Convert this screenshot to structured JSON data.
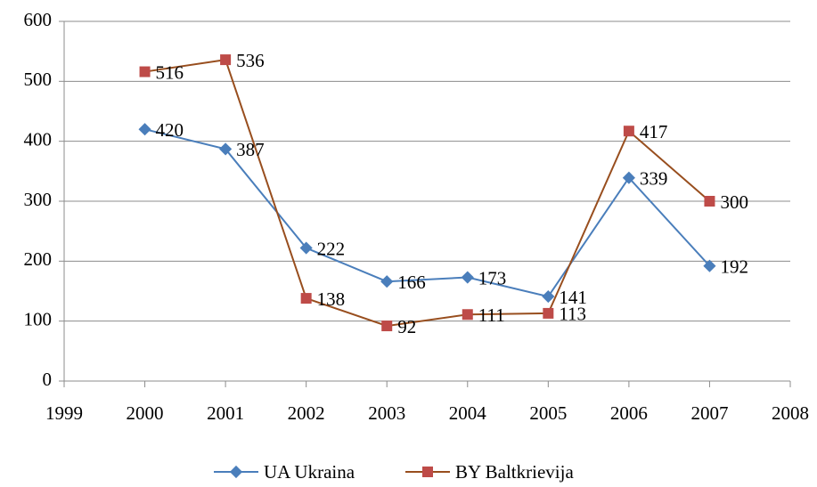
{
  "chart_data": {
    "type": "line",
    "x": [
      2000,
      2001,
      2002,
      2003,
      2004,
      2005,
      2006,
      2007
    ],
    "series": [
      {
        "name": "UA Ukraina",
        "color": "#4a7ebb",
        "marker_color": "#4a7ebb",
        "values": [
          420,
          387,
          222,
          166,
          173,
          141,
          339,
          192
        ]
      },
      {
        "name": "BY Baltkrievija",
        "color": "#984e1e",
        "marker_color": "#be4b48",
        "values": [
          516,
          536,
          138,
          92,
          111,
          113,
          417,
          300
        ]
      }
    ],
    "xlim": [
      1999,
      2008
    ],
    "xticks": [
      1999,
      2000,
      2001,
      2002,
      2003,
      2004,
      2005,
      2006,
      2007,
      2008
    ],
    "ylim": [
      0,
      600
    ],
    "yticks": [
      0,
      100,
      200,
      300,
      400,
      500,
      600
    ],
    "grid": true,
    "legend": "bottom"
  }
}
